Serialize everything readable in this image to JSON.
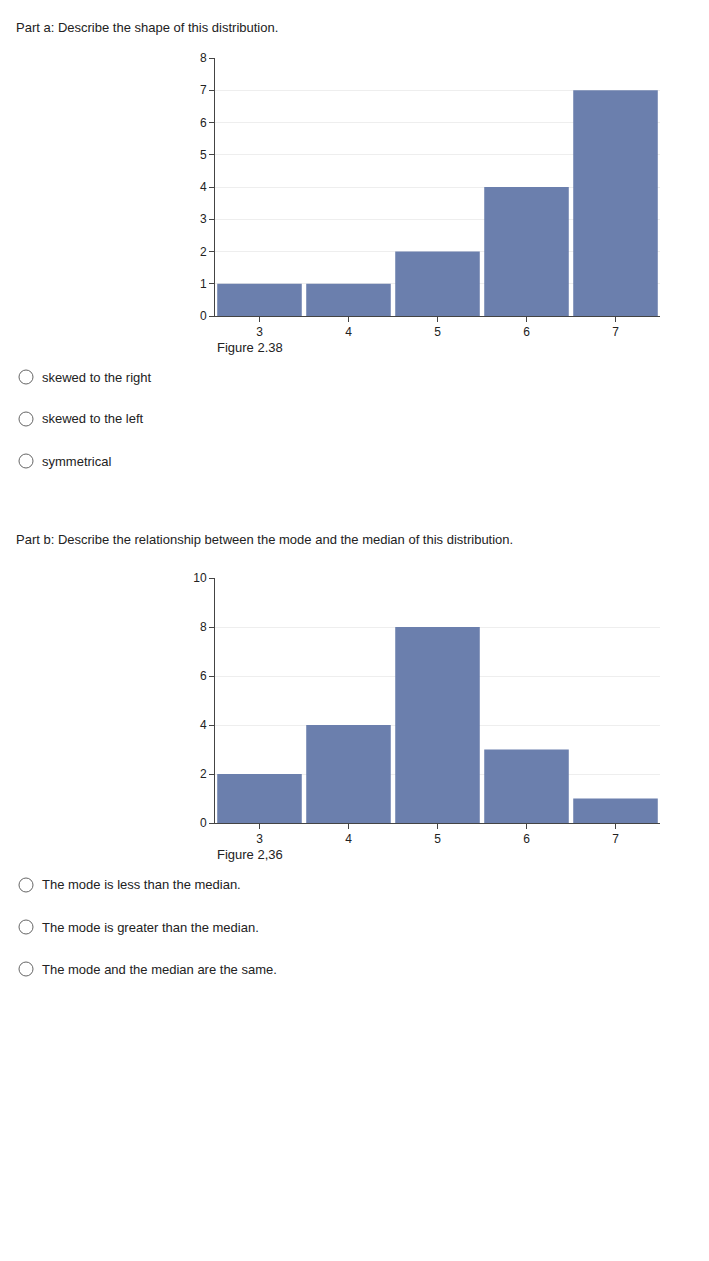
{
  "chart_data": [
    {
      "type": "bar",
      "title": "Part a: Describe the shape of this distribution.",
      "x": [
        3,
        4,
        5,
        6,
        7
      ],
      "values": [
        1,
        1,
        2,
        4,
        7
      ],
      "color": "#6b7fad",
      "xlim": [
        2.5,
        7.5
      ],
      "xticks": [
        3,
        4,
        5,
        6,
        7
      ],
      "ylim": [
        0,
        8
      ],
      "yticks": [
        0,
        1,
        2,
        3,
        4,
        5,
        6,
        7,
        8
      ],
      "grid": true,
      "annotations": [
        "Figure 2.38",
        "skewed to the right",
        "skewed to the left",
        "symmetrical"
      ]
    },
    {
      "type": "bar",
      "title": "Part b: Describe the relationship between the mode and the median of this distribution.",
      "x": [
        3,
        4,
        5,
        6,
        7
      ],
      "values": [
        2,
        4,
        8,
        3,
        1
      ],
      "color": "#6b7fad",
      "xlim": [
        2.5,
        7.5
      ],
      "xticks": [
        3,
        4,
        5,
        6,
        7
      ],
      "ylim": [
        0,
        10
      ],
      "yticks": [
        0,
        2,
        4,
        6,
        8,
        10
      ],
      "grid": true,
      "annotations": [
        "Figure 2,36",
        "The mode is less than the median.",
        "The mode is greater than the median.",
        "The mode and the median are the same."
      ]
    }
  ]
}
